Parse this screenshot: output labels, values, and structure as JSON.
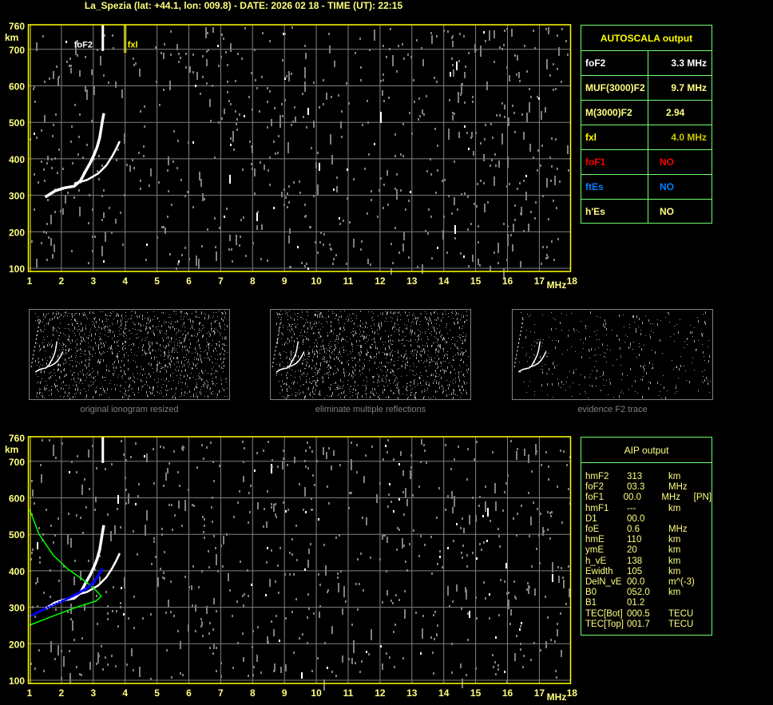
{
  "header": {
    "title": "La_Spezia (lat: +44.1, lon: 009.8) - DATE: 2026 02 18 - TIME (UT): 22:15"
  },
  "colors": {
    "frame": "#ffff00",
    "grid": "#808080",
    "trace": "#ffffff",
    "noise": "#808080",
    "profile": "#00ff00",
    "aip_points": "#0000ff",
    "table_border": "#70ff70"
  },
  "autoscala": {
    "title": "AUTOSCALA output",
    "rows": [
      {
        "label": "foF2",
        "value": "3.3 MHz",
        "label_color": "#ffffff",
        "value_color": "#ffffff"
      },
      {
        "label": "MUF(3000)F2",
        "value": "9.7 MHz",
        "label_color": "#ffff80",
        "value_color": "#ffff80"
      },
      {
        "label": "M(3000)F2",
        "value": "2.94",
        "label_color": "#ffff80",
        "value_color": "#ffff80"
      },
      {
        "label": "fxl",
        "value": "4.0 MHz",
        "label_color": "#ffff00",
        "value_color": "#c8c800"
      },
      {
        "label": "foF1",
        "value": "NO",
        "label_color": "#ff0000",
        "value_color": "#ff0000"
      },
      {
        "label": "ftEs",
        "value": "NO",
        "label_color": "#0080ff",
        "value_color": "#0080ff"
      },
      {
        "label": "h'Es",
        "value": "NO",
        "label_color": "#ffff80",
        "value_color": "#ffff80"
      }
    ]
  },
  "aip": {
    "title": "AIP output",
    "rows": [
      [
        "hmF2",
        "313",
        "km",
        ""
      ],
      [
        "foF2",
        "03.3",
        "MHz",
        ""
      ],
      [
        "foF1",
        "00.0",
        "MHz",
        "[PN]"
      ],
      [
        "hmF1",
        "---",
        "km",
        ""
      ],
      [
        "D1",
        "00.0",
        "",
        ""
      ],
      [
        "foE",
        "0.6",
        "MHz",
        ""
      ],
      [
        "hmE",
        "110",
        "km",
        ""
      ],
      [
        "ymE",
        "20",
        "km",
        ""
      ],
      [
        "h_vE",
        "138",
        "km",
        ""
      ],
      [
        "Ewidth",
        "105",
        "km",
        ""
      ],
      [
        "DelN_vE",
        "00.0",
        "m^(-3)",
        ""
      ],
      [
        "B0",
        "052.0",
        "km",
        ""
      ],
      [
        "B1",
        "01.2",
        "",
        ""
      ],
      [
        "TEC[Bot]",
        "000.5",
        "TECU",
        ""
      ],
      [
        "TEC[Top]",
        "001.7",
        "TECU",
        ""
      ]
    ]
  },
  "thumbnails": [
    {
      "label": "original ionogram resized"
    },
    {
      "label": "eliminate multiple reflections"
    },
    {
      "label": "evidence F2 trace"
    }
  ],
  "chart_data": [
    {
      "type": "scatter",
      "title": "",
      "xlabel": "MHz",
      "ylabel": "km",
      "xlim": [
        1,
        18
      ],
      "ylim": [
        100,
        760
      ],
      "xticks": [
        "1",
        "2",
        "3",
        "4",
        "5",
        "6",
        "7",
        "8",
        "9",
        "10",
        "11",
        "12",
        "13",
        "14",
        "15",
        "16",
        "17",
        "18"
      ],
      "yticks": [
        "100",
        "200",
        "300",
        "400",
        "500",
        "600",
        "700",
        "760"
      ],
      "grid": true,
      "series": [
        {
          "color": "#ffffff",
          "points": [
            [
              1.49,
              295
            ],
            [
              1.8,
              312
            ],
            [
              2.08,
              320
            ],
            [
              2.4,
              325
            ],
            [
              2.6,
              340
            ],
            [
              2.75,
              365
            ],
            [
              2.9,
              388
            ],
            [
              3.03,
              412
            ],
            [
              3.12,
              432
            ],
            [
              3.2,
              457
            ],
            [
              3.28,
              500
            ],
            [
              3.33,
              525
            ]
          ]
        },
        {
          "color": "#ffffff",
          "points": [
            [
              2.4,
              332
            ],
            [
              2.8,
              342
            ],
            [
              3.16,
              360
            ],
            [
              3.41,
              382
            ],
            [
              3.6,
              408
            ],
            [
              3.71,
              426
            ],
            [
              3.83,
              448
            ]
          ]
        }
      ],
      "annotations": [
        {
          "text": "foF2",
          "x": 3.3,
          "color": "#ffffff"
        },
        {
          "text": "fxl",
          "x": 4.0,
          "color": "#ffff00"
        }
      ]
    },
    {
      "type": "scatter",
      "title": "",
      "xlabel": "MHz",
      "ylabel": "km",
      "xlim": [
        1,
        18
      ],
      "ylim": [
        100,
        760
      ],
      "xticks": [
        "1",
        "2",
        "3",
        "4",
        "5",
        "6",
        "7",
        "8",
        "9",
        "10",
        "11",
        "12",
        "13",
        "14",
        "15",
        "16",
        "17",
        "18"
      ],
      "yticks": [
        "100",
        "200",
        "300",
        "400",
        "500",
        "600",
        "700",
        "760"
      ],
      "grid": true,
      "series": [
        {
          "color": "#ffffff",
          "points": [
            [
              1.49,
              295
            ],
            [
              1.8,
              312
            ],
            [
              2.08,
              320
            ],
            [
              2.4,
              325
            ],
            [
              2.6,
              340
            ],
            [
              2.75,
              365
            ],
            [
              2.9,
              388
            ],
            [
              3.03,
              412
            ],
            [
              3.12,
              432
            ],
            [
              3.2,
              457
            ],
            [
              3.28,
              500
            ],
            [
              3.33,
              525
            ]
          ]
        },
        {
          "color": "#ffffff",
          "points": [
            [
              2.4,
              332
            ],
            [
              2.8,
              342
            ],
            [
              3.16,
              360
            ],
            [
              3.41,
              382
            ],
            [
              3.6,
              408
            ],
            [
              3.71,
              426
            ],
            [
              3.83,
              448
            ]
          ]
        },
        {
          "color": "#00ff00",
          "line": true,
          "points": [
            [
              1,
              568
            ],
            [
              1.3,
              500
            ],
            [
              1.74,
              443
            ],
            [
              2.2,
              405
            ],
            [
              2.75,
              371
            ],
            [
              3.1,
              345
            ],
            [
              3.25,
              330
            ],
            [
              3.08,
              317
            ],
            [
              2.5,
              301
            ],
            [
              1.65,
              273
            ],
            [
              1,
              251
            ]
          ]
        },
        {
          "color": "#0000ff",
          "points": [
            [
              1,
              275
            ],
            [
              1.5,
              296
            ],
            [
              2.08,
              319
            ],
            [
              2.5,
              337
            ],
            [
              2.8,
              352
            ],
            [
              3.0,
              367
            ],
            [
              3.15,
              385
            ],
            [
              3.28,
              406
            ]
          ]
        }
      ]
    }
  ]
}
